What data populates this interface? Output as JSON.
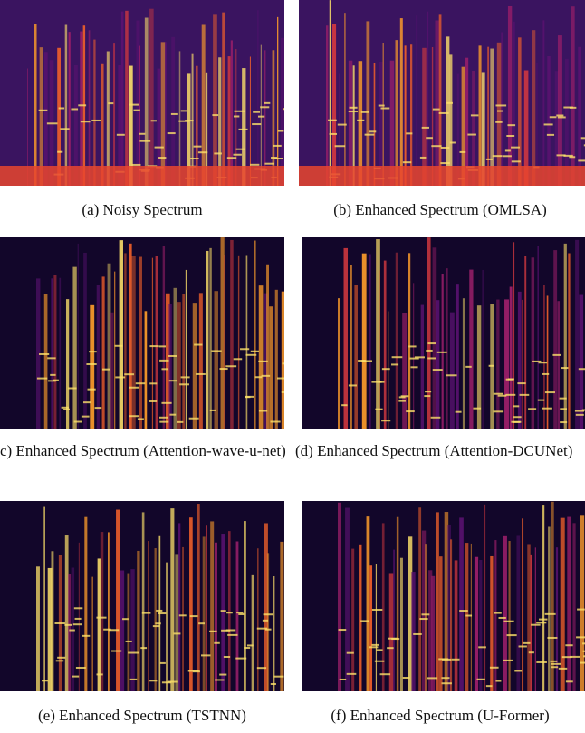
{
  "figure": {
    "panels": [
      {
        "caption": "(a) Noisy Spectrum"
      },
      {
        "caption": "(b) Enhanced Spectrum (OMLSA)"
      },
      {
        "caption": "c) Enhanced Spectrum (Attention-wave-u-net)"
      },
      {
        "caption": "(d) Enhanced Spectrum (Attention-DCUNet)"
      },
      {
        "caption": "(e) Enhanced Spectrum (TSTNN)"
      },
      {
        "caption": "(f) Enhanced Spectrum (U-Former)"
      }
    ]
  }
}
